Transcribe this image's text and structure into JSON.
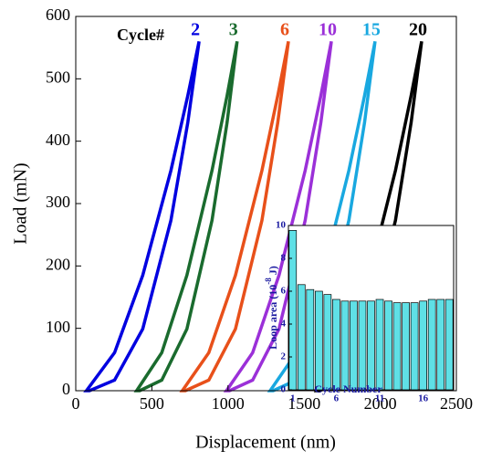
{
  "chart_data": [
    {
      "type": "line",
      "x_label": "Displacement (nm)",
      "y_label": "Load (mN)",
      "annotation": "Cycle#",
      "xlim": [
        0,
        2500
      ],
      "xticks": [
        0,
        500,
        1000,
        1500,
        2000,
        2500
      ],
      "ylim": [
        0,
        600
      ],
      "yticks": [
        0,
        100,
        200,
        300,
        400,
        500,
        600
      ],
      "series": [
        {
          "name": "2",
          "color": "#0000e0",
          "x": [
            70,
            255,
            440,
            625,
            736,
            810,
            736,
            625,
            440,
            255,
            90
          ],
          "values": [
            0,
            61,
            185,
            353,
            473,
            560,
            430,
            273,
            99,
            17,
            0
          ]
        },
        {
          "name": "3",
          "color": "#1a6b2e",
          "x": [
            400,
            565,
            730,
            895,
            994,
            1060,
            994,
            895,
            730,
            565,
            420
          ],
          "values": [
            0,
            61,
            185,
            353,
            473,
            560,
            430,
            273,
            99,
            17,
            0
          ]
        },
        {
          "name": "6",
          "color": "#e8501a",
          "x": [
            700,
            874,
            1049,
            1223,
            1327,
            1397,
            1327,
            1223,
            1049,
            874,
            720
          ],
          "values": [
            0,
            61,
            185,
            353,
            473,
            560,
            430,
            273,
            99,
            17,
            0
          ]
        },
        {
          "name": "10",
          "color": "#9b30d8",
          "x": [
            990,
            1162,
            1335,
            1507,
            1610,
            1679,
            1610,
            1507,
            1335,
            1162,
            1010
          ],
          "values": [
            0,
            61,
            185,
            353,
            473,
            560,
            430,
            273,
            99,
            17,
            0
          ]
        },
        {
          "name": "15",
          "color": "#19a8e0",
          "x": [
            1277,
            1449,
            1622,
            1794,
            1897,
            1966,
            1897,
            1794,
            1622,
            1449,
            1297
          ],
          "values": [
            0,
            61,
            185,
            353,
            473,
            560,
            430,
            273,
            99,
            17,
            0
          ]
        },
        {
          "name": "20",
          "color": "#000000",
          "x": [
            1583,
            1755,
            1928,
            2100,
            2203,
            2272,
            2203,
            2100,
            1928,
            1755,
            1603
          ],
          "values": [
            0,
            61,
            185,
            353,
            473,
            560,
            430,
            273,
            99,
            17,
            0
          ]
        }
      ]
    },
    {
      "type": "bar",
      "x_label": "Cycle Number",
      "y_label": "Loop area (10",
      "y_label_sup": "-8",
      "y_label_end": " J)",
      "color": "#5fe0e6",
      "categories": [
        1,
        null,
        null,
        null,
        null,
        6,
        null,
        null,
        null,
        null,
        11,
        null,
        null,
        null,
        null,
        16,
        null,
        null,
        null
      ],
      "values": [
        9.7,
        6.4,
        6.1,
        6.0,
        5.8,
        5.5,
        5.4,
        5.4,
        5.4,
        5.4,
        5.5,
        5.4,
        5.3,
        5.3,
        5.3,
        5.4,
        5.5,
        5.5,
        5.5
      ],
      "ylim": [
        0,
        10
      ],
      "yticks": [
        0,
        2,
        4,
        6,
        8,
        10
      ]
    }
  ]
}
